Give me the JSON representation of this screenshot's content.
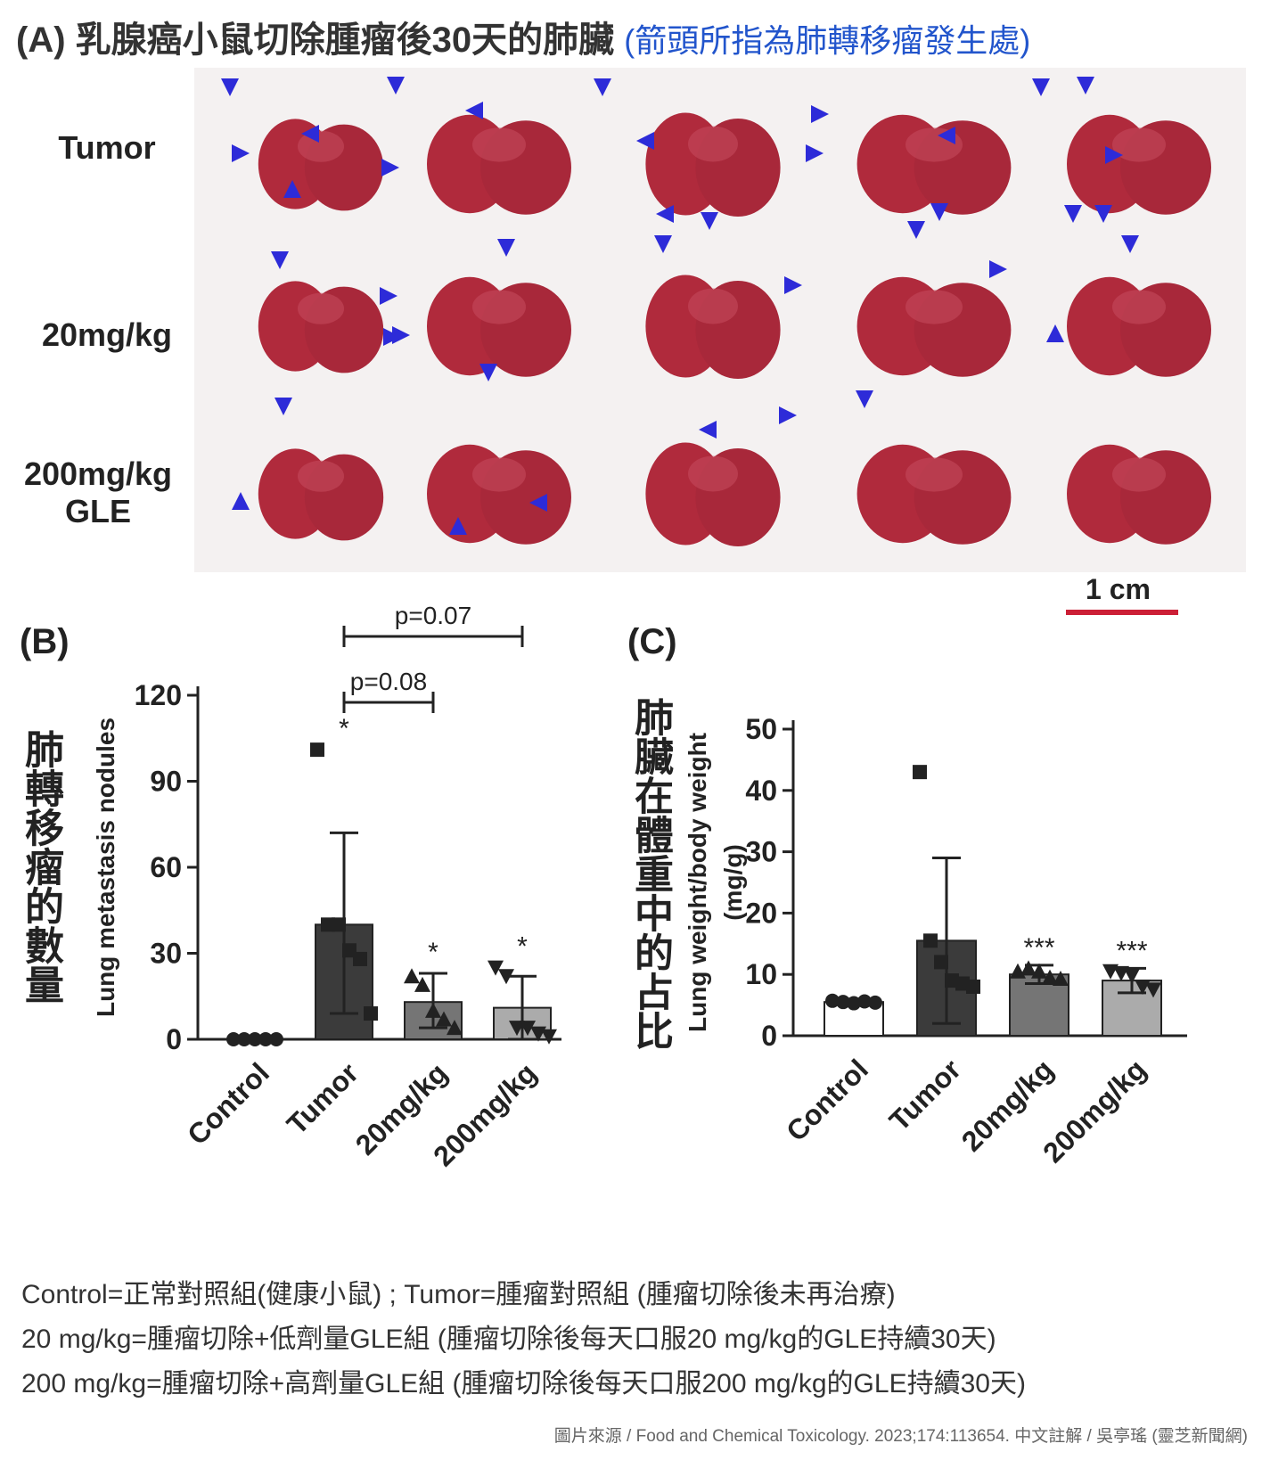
{
  "figure_title": "(A) 乳腺癌小鼠切除腫瘤後30天的肺臟",
  "figure_subtitle": "(箭頭所指為肺轉移瘤發生處)",
  "photo_panel": {
    "row_labels": [
      "Tumor",
      "20mg/kg",
      "200mg/kg",
      "GLE"
    ],
    "scale_bar": "1 cm",
    "lung_color": "#b02a3c",
    "arrow_color": "#2d2bd8"
  },
  "panel_b": {
    "label": "(B)",
    "cn_label": "肺轉移瘤的數量",
    "p_top": "p=0.07",
    "p_bottom": "p=0.08"
  },
  "panel_c": {
    "label": "(C)",
    "cn_label": "肺臟在體重中的占比"
  },
  "chart_data": [
    {
      "type": "bar",
      "title": "(B)",
      "ylabel": "Lung metastasis nodules",
      "categories": [
        "Control",
        "Tumor",
        "20mg/kg",
        "200mg/kg"
      ],
      "values": [
        0,
        40,
        13,
        11
      ],
      "error_upper": [
        0,
        72,
        23,
        22
      ],
      "error_lower": [
        0,
        9,
        4,
        0
      ],
      "ylim": [
        0,
        120
      ],
      "yticks": [
        0,
        30,
        60,
        90,
        120
      ],
      "significance": [
        "",
        "*",
        "*",
        "*"
      ],
      "points": [
        [
          0,
          0,
          0,
          0,
          0
        ],
        [
          101,
          40,
          40,
          31,
          28,
          9
        ],
        [
          22,
          19,
          10,
          7,
          4
        ],
        [
          25,
          22,
          4,
          4,
          2,
          1
        ]
      ],
      "bar_colors": [
        "#ffffff",
        "#3b3b3b",
        "#757575",
        "#ababab"
      ],
      "annotations": [
        "p=0.07",
        "p=0.08"
      ]
    },
    {
      "type": "bar",
      "title": "(C)",
      "ylabel": "Lung weight/body weight (mg/g)",
      "categories": [
        "Control",
        "Tumor",
        "20mg/kg",
        "200mg/kg"
      ],
      "values": [
        5.5,
        15.5,
        10,
        9
      ],
      "error_upper": [
        6,
        29,
        11.5,
        11
      ],
      "error_lower": [
        5,
        2,
        8.5,
        7
      ],
      "ylim": [
        0,
        50
      ],
      "yticks": [
        0,
        10,
        20,
        30,
        40,
        50
      ],
      "significance": [
        "",
        "",
        "***",
        "***"
      ],
      "points": [
        [
          5.7,
          5.5,
          5.3,
          5.6,
          5.4
        ],
        [
          43,
          15.5,
          12,
          9,
          8.5,
          8
        ],
        [
          10.5,
          11,
          10.5,
          9.5,
          9.3
        ],
        [
          10.5,
          10.2,
          9.8,
          8,
          7.5
        ]
      ],
      "bar_colors": [
        "#ffffff",
        "#3b3b3b",
        "#757575",
        "#ababab"
      ]
    }
  ],
  "notes": [
    "Control=正常對照組(健康小鼠) ; Tumor=腫瘤對照組 (腫瘤切除後未再治療)",
    "20 mg/kg=腫瘤切除+低劑量GLE組 (腫瘤切除後每天口服20 mg/kg的GLE持續30天)",
    "200 mg/kg=腫瘤切除+高劑量GLE組 (腫瘤切除後每天口服200 mg/kg的GLE持續30天)"
  ],
  "source": "圖片來源 / Food and Chemical Toxicology. 2023;174:113654.     中文註解 / 吳亭瑤 (靈芝新聞網)"
}
